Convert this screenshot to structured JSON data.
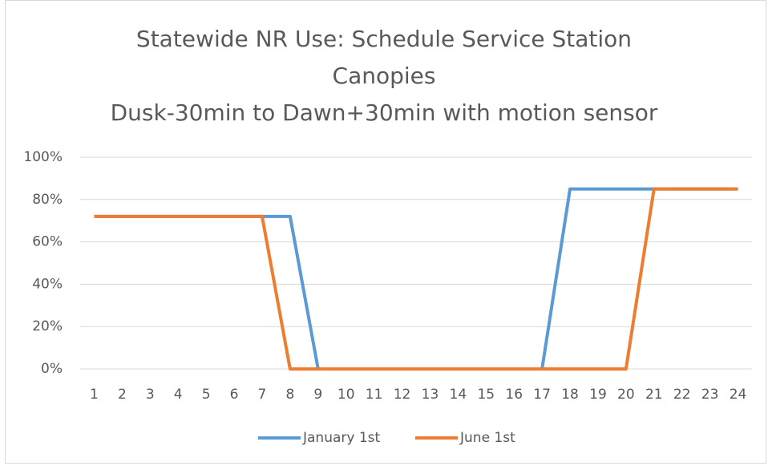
{
  "chart_data": {
    "type": "line",
    "title": "Statewide NR Use: Schedule Service Station Canopies",
    "subtitle": "Dusk-30min to Dawn+30min with motion sensor",
    "categories": [
      "1",
      "2",
      "3",
      "4",
      "5",
      "6",
      "7",
      "8",
      "9",
      "10",
      "11",
      "12",
      "13",
      "14",
      "15",
      "16",
      "17",
      "18",
      "19",
      "20",
      "21",
      "22",
      "23",
      "24"
    ],
    "series": [
      {
        "name": "January 1st",
        "color": "#5b9bd5",
        "values": [
          72,
          72,
          72,
          72,
          72,
          72,
          72,
          72,
          0,
          0,
          0,
          0,
          0,
          0,
          0,
          0,
          0,
          85,
          85,
          85,
          85,
          85,
          85,
          85
        ]
      },
      {
        "name": "June 1st",
        "color": "#ed7d31",
        "values": [
          72,
          72,
          72,
          72,
          72,
          72,
          72,
          0,
          0,
          0,
          0,
          0,
          0,
          0,
          0,
          0,
          0,
          0,
          0,
          0,
          85,
          85,
          85,
          85
        ]
      }
    ],
    "ylim": [
      0,
      100
    ],
    "yticks": [
      {
        "value": 0,
        "label": "0%"
      },
      {
        "value": 20,
        "label": "20%"
      },
      {
        "value": 40,
        "label": "40%"
      },
      {
        "value": 60,
        "label": "60%"
      },
      {
        "value": 80,
        "label": "80%"
      },
      {
        "value": 100,
        "label": "100%"
      }
    ],
    "grid": true,
    "legend": "bottom"
  }
}
